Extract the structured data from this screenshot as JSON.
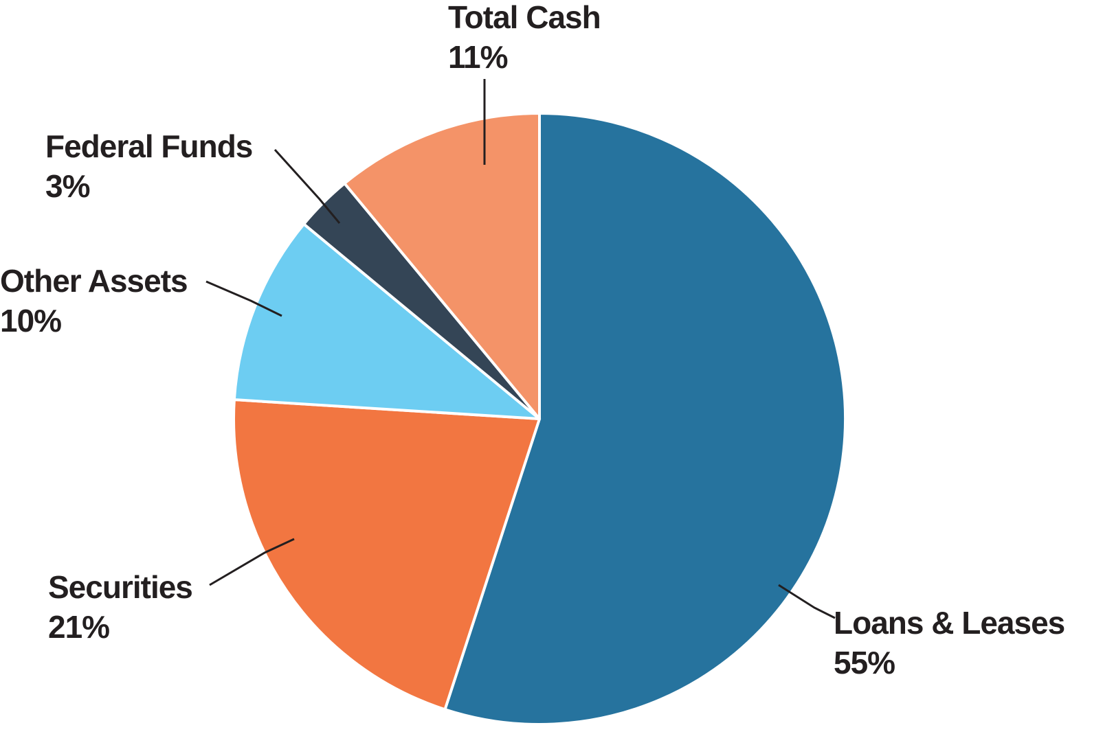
{
  "chart_data": {
    "type": "pie",
    "title": "",
    "categories": [
      "Loans & Leases",
      "Securities",
      "Other Assets",
      "Federal Funds",
      "Total Cash"
    ],
    "values": [
      55,
      21,
      10,
      3,
      11
    ],
    "unit": "%",
    "colors": [
      "#26739e",
      "#f27641",
      "#6dcdf2",
      "#344556",
      "#f49368"
    ],
    "start_angle_deg": 0,
    "direction": "clockwise",
    "legend": "none (direct callout labels)",
    "labels": [
      {
        "name": "Loans & Leases",
        "value_label": "55%"
      },
      {
        "name": "Securities",
        "value_label": "21%"
      },
      {
        "name": "Other Assets",
        "value_label": "10%"
      },
      {
        "name": "Federal Funds",
        "value_label": "3%"
      },
      {
        "name": "Total Cash",
        "value_label": "11%"
      }
    ]
  },
  "labels": {
    "loans": {
      "name": "Loans & Leases",
      "pct": "55%"
    },
    "securities": {
      "name": "Securities",
      "pct": "21%"
    },
    "other": {
      "name": "Other Assets",
      "pct": "10%"
    },
    "federal": {
      "name": "Federal Funds",
      "pct": "3%"
    },
    "cash": {
      "name": "Total Cash",
      "pct": "11%"
    }
  }
}
